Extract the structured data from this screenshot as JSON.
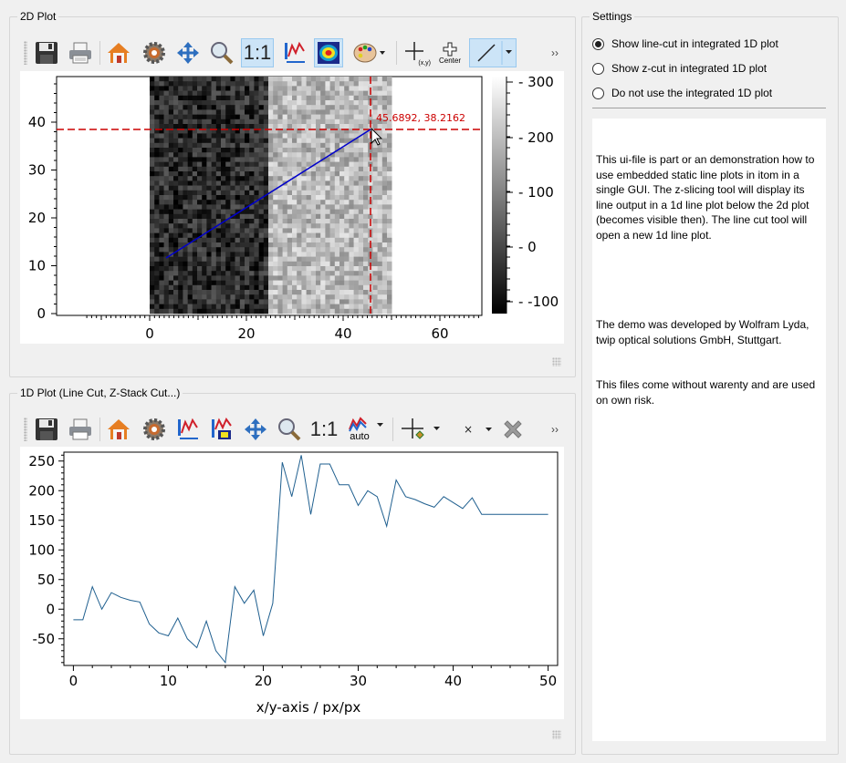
{
  "plot2d": {
    "group_title": "2D Plot",
    "marker_label": "45.6892, 38.2162",
    "x_ticks": [
      "0",
      "20",
      "40",
      "60"
    ],
    "y_ticks": [
      "0",
      "10",
      "20",
      "30",
      "40"
    ],
    "colorbar_ticks": [
      "300",
      "200",
      "100",
      "0",
      "-100"
    ]
  },
  "plot1d": {
    "group_title": "1D Plot (Line Cut, Z-Stack Cut...)",
    "xlabel": "x/y-axis / px/px",
    "x_ticks": [
      "0",
      "10",
      "20",
      "30",
      "40",
      "50"
    ],
    "y_ticks": [
      "250",
      "200",
      "150",
      "100",
      "50",
      "0",
      "-50"
    ],
    "onetoone_label": "1:1",
    "auto_label": "auto",
    "cursor_label_xy": "(x,y)"
  },
  "toolbar2d": {
    "onetoone_label": "1:1",
    "center_label": "Center",
    "cursor_label_xy": "(x,y)"
  },
  "settings": {
    "group_title": "Settings",
    "options": [
      {
        "label": "Show line-cut in integrated 1D plot",
        "checked": true
      },
      {
        "label": "Show z-cut in integrated 1D plot",
        "checked": false
      },
      {
        "label": "Do not use the integrated 1D plot",
        "checked": false
      }
    ],
    "description_p1": "This ui-file is part or an demonstration how to use embedded static line plots in itom in a single GUI. The z-slicing tool will display its line output in a 1d line plot below the 2d plot (becomes visible then). The line cut tool will open a new 1d line plot.",
    "description_p2": "The demo was developed by Wolfram Lyda, twip optical solutions GmbH, Stuttgart.",
    "description_p3": "This files come without warenty and are used on own risk."
  },
  "colors": {
    "line_cut": "#0000cc",
    "crosshair": "#cc0000",
    "curve": "#1f5f8f",
    "selection": "#cce4f7"
  },
  "chart_data": {
    "type": "line",
    "xlabel": "x/y-axis / px/px",
    "ylabel": "",
    "xlim": [
      -1,
      51
    ],
    "ylim": [
      -95,
      265
    ],
    "x": [
      0,
      1,
      2,
      3,
      4,
      5,
      6,
      7,
      8,
      9,
      10,
      11,
      12,
      13,
      14,
      15,
      16,
      17,
      18,
      19,
      20,
      21,
      22,
      23,
      24,
      25,
      26,
      27,
      28,
      29,
      30,
      31,
      32,
      33,
      34,
      35,
      36,
      37,
      38,
      39,
      40,
      41,
      42,
      43,
      44,
      45,
      46,
      47,
      48,
      49,
      50
    ],
    "values": [
      -18,
      -18,
      38,
      0,
      28,
      20,
      15,
      12,
      -25,
      -40,
      -45,
      -15,
      -50,
      -65,
      -20,
      -70,
      -90,
      38,
      10,
      32,
      -45,
      10,
      248,
      190,
      260,
      160,
      245,
      245,
      210,
      210,
      175,
      200,
      190,
      140,
      218,
      190,
      185,
      178,
      172,
      190,
      180,
      170,
      188,
      160,
      160,
      160,
      160,
      160,
      160,
      160,
      160
    ]
  }
}
